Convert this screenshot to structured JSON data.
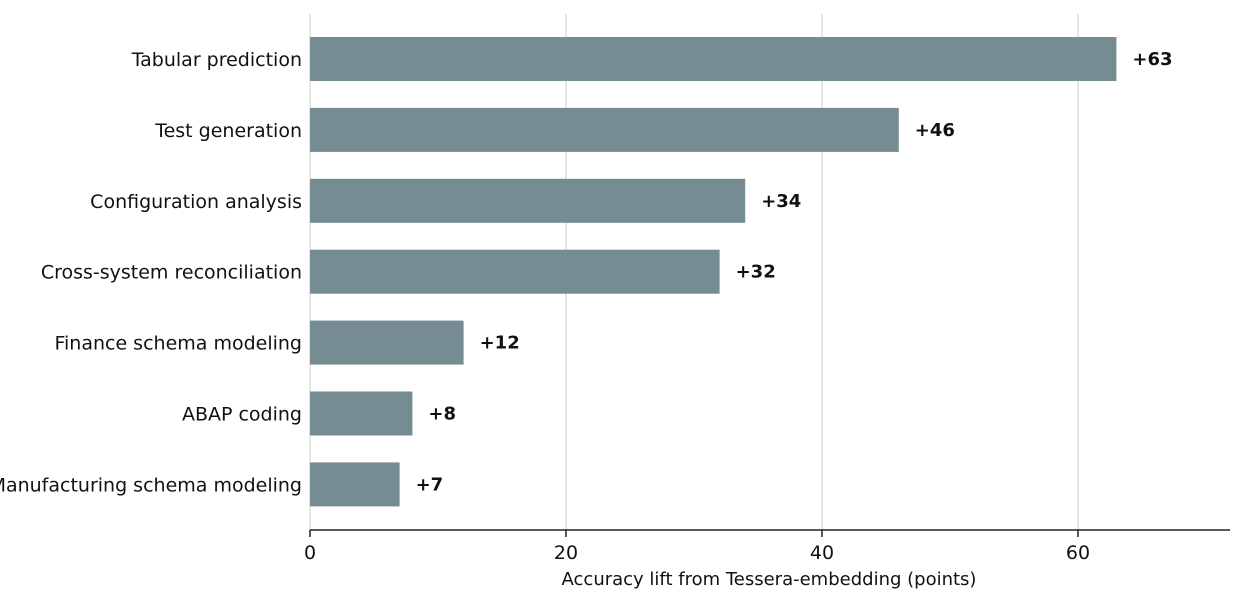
{
  "chart_data": {
    "type": "bar",
    "orientation": "horizontal",
    "categories": [
      "Tabular prediction",
      "Test generation",
      "Configuration analysis",
      "Cross-system reconciliation",
      "Finance schema modeling",
      "ABAP coding",
      "Manufacturing schema modeling"
    ],
    "values": [
      63,
      46,
      34,
      32,
      12,
      8,
      7
    ],
    "value_labels": [
      "+63",
      "+46",
      "+34",
      "+32",
      "+12",
      "+8",
      "+7"
    ],
    "xlabel": "Accuracy lift from Tessera-embedding (points)",
    "ylabel": "",
    "xlim": [
      0,
      72
    ],
    "xticks": [
      0,
      20,
      40,
      60
    ],
    "grid": "vertical",
    "bar_color": "#748c92"
  }
}
